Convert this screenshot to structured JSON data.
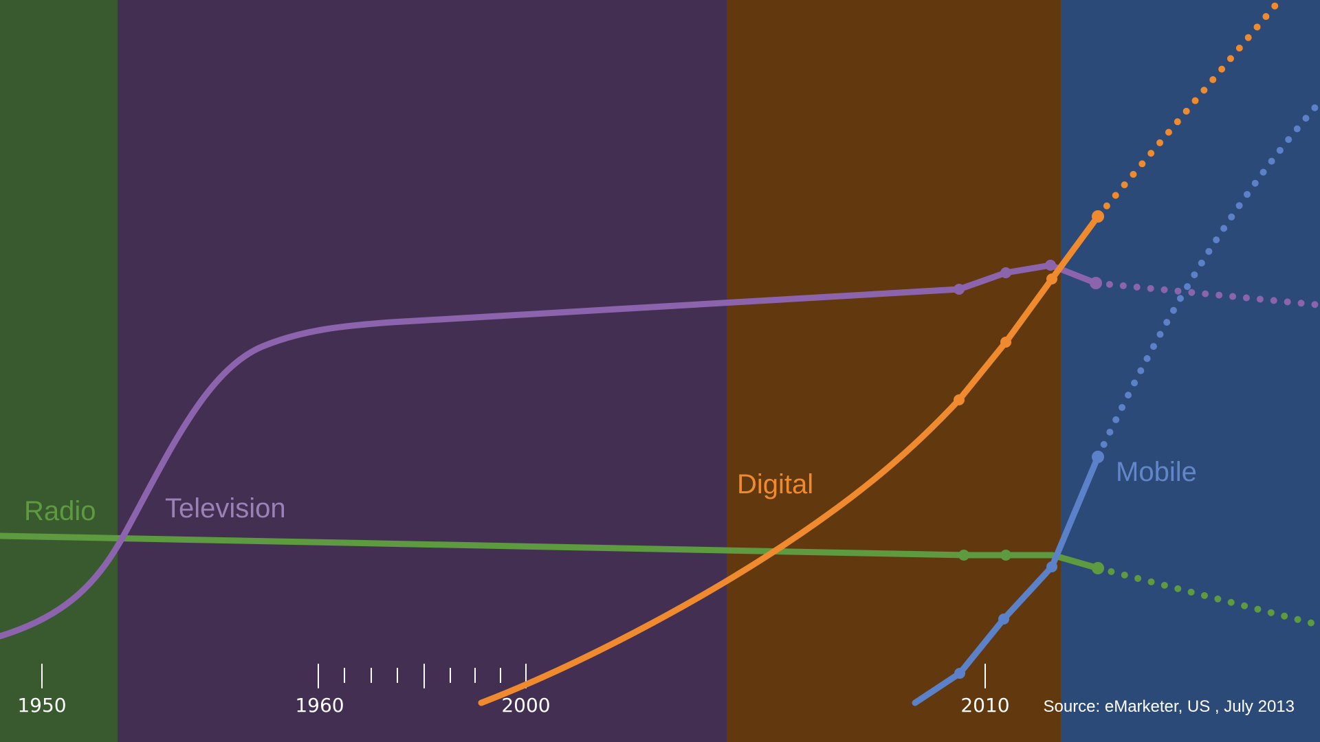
{
  "chart_data": {
    "type": "line",
    "title": "",
    "xlabel": "",
    "ylabel": "",
    "grid": false,
    "eras": [
      {
        "label": "Radio",
        "color": "#385a2e",
        "text_color": "#5e9a40"
      },
      {
        "label": "Television",
        "color": "#422f52",
        "text_color": "#9a82b6"
      },
      {
        "label": "Digital",
        "color": "#62380f",
        "text_color": "#f08a2e"
      },
      {
        "label": "Mobile",
        "color": "#2b4a78",
        "text_color": "#6187c9"
      }
    ],
    "tick_labels": [
      "1950",
      "1960",
      "2000",
      "2010"
    ],
    "series": [
      {
        "name": "Radio",
        "color": "#5e9a40"
      },
      {
        "name": "Television",
        "color": "#8c64ae"
      },
      {
        "name": "Digital",
        "color": "#f08a2e"
      },
      {
        "name": "Mobile",
        "color": "#5b82c9"
      }
    ],
    "source": "Source: eMarketer, US , July 2013"
  }
}
